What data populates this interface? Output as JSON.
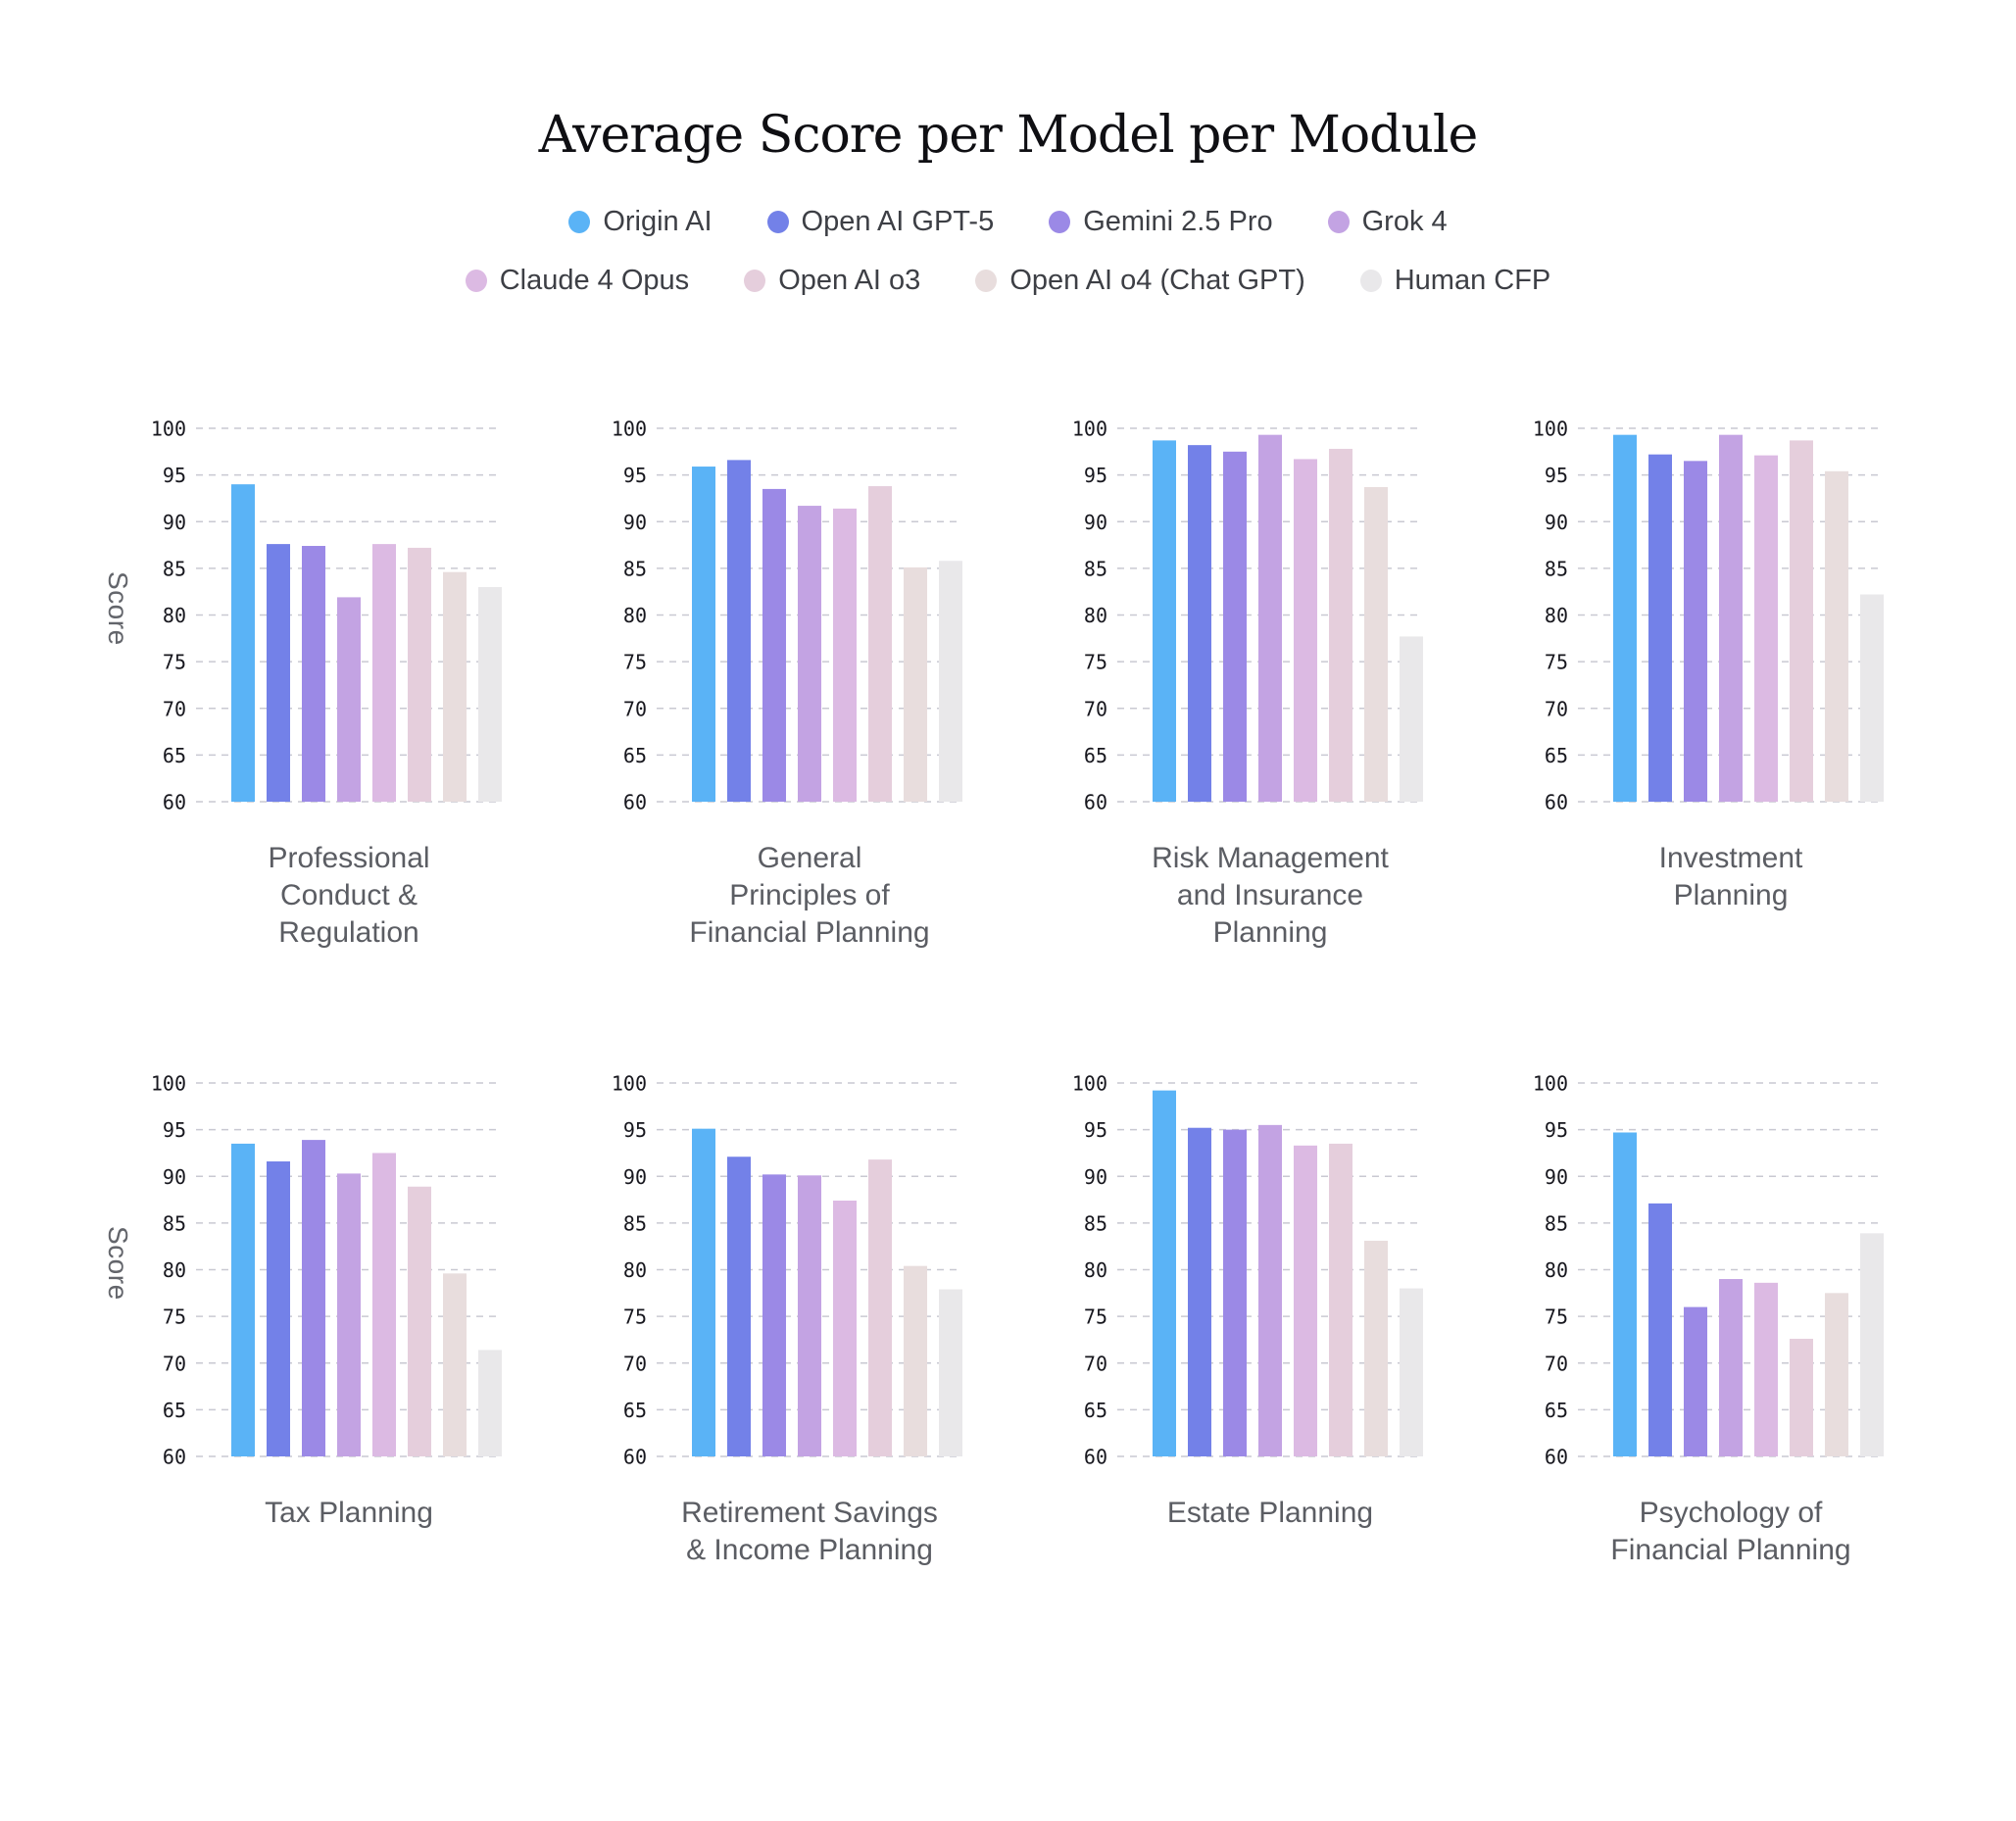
{
  "title": "Average Score per Model per Module",
  "y_axis_label": "Score",
  "models": [
    {
      "name": "Origin AI",
      "color": "#5ab3f6"
    },
    {
      "name": "Open AI GPT-5",
      "color": "#7381e8"
    },
    {
      "name": "Gemini 2.5 Pro",
      "color": "#9b89e6"
    },
    {
      "name": "Grok 4",
      "color": "#c3a3e3"
    },
    {
      "name": "Claude 4 Opus",
      "color": "#dcbae3"
    },
    {
      "name": "Open AI o3",
      "color": "#e5cedc"
    },
    {
      "name": "Open AI o4 (Chat GPT)",
      "color": "#e8dddd"
    },
    {
      "name": "Human CFP",
      "color": "#e9e8ea"
    }
  ],
  "legend": {
    "rows": [
      [
        0,
        1,
        2,
        3
      ],
      [
        4,
        5,
        6,
        7
      ]
    ]
  },
  "chart_data": {
    "type": "bar",
    "title": "Average Score per Model per Module",
    "xlabel": "",
    "ylabel": "Score",
    "ylim": [
      60,
      100
    ],
    "yticks": [
      60,
      65,
      70,
      75,
      80,
      85,
      90,
      95,
      100
    ],
    "grid": "horizontal-dashed",
    "legend_position": "top",
    "series": [
      "Origin AI",
      "Open AI GPT-5",
      "Gemini 2.5 Pro",
      "Grok 4",
      "Claude 4 Opus",
      "Open AI o3",
      "Open AI o4 (Chat GPT)",
      "Human CFP"
    ],
    "charts": [
      {
        "module": "Professional Conduct & Regulation",
        "label_lines": [
          "Professional",
          "Conduct &",
          "Regulation"
        ],
        "values": [
          94.0,
          87.6,
          87.4,
          81.9,
          87.6,
          87.2,
          84.6,
          83.0
        ]
      },
      {
        "module": "General Principles of Financial Planning",
        "label_lines": [
          "General",
          "Principles of",
          "Financial Planning"
        ],
        "values": [
          95.9,
          96.6,
          93.5,
          91.7,
          91.4,
          93.8,
          85.1,
          85.8
        ]
      },
      {
        "module": "Risk Management and Insurance Planning",
        "label_lines": [
          "Risk Management",
          "and Insurance",
          "Planning"
        ],
        "values": [
          98.7,
          98.2,
          97.5,
          99.3,
          96.7,
          97.8,
          93.7,
          77.7
        ]
      },
      {
        "module": "Investment Planning",
        "label_lines": [
          "Investment",
          "Planning"
        ],
        "values": [
          99.3,
          97.2,
          96.5,
          99.3,
          97.1,
          98.7,
          95.4,
          82.2
        ]
      },
      {
        "module": "Tax Planning",
        "label_lines": [
          "Tax Planning"
        ],
        "values": [
          93.5,
          91.6,
          93.9,
          90.3,
          92.5,
          88.9,
          79.6,
          71.4
        ]
      },
      {
        "module": "Retirement Savings & Income Planning",
        "label_lines": [
          "Retirement Savings",
          "& Income Planning"
        ],
        "values": [
          95.1,
          92.1,
          90.2,
          90.1,
          87.4,
          91.8,
          80.4,
          77.9
        ]
      },
      {
        "module": "Estate Planning",
        "label_lines": [
          "Estate Planning"
        ],
        "values": [
          99.2,
          95.2,
          95.0,
          95.5,
          93.3,
          93.5,
          83.1,
          78.0
        ]
      },
      {
        "module": "Psychology of Financial Planning",
        "label_lines": [
          "Psychology of",
          "Financial Planning"
        ],
        "values": [
          94.7,
          87.1,
          76.0,
          79.0,
          78.6,
          72.6,
          77.5,
          83.9
        ]
      }
    ]
  }
}
